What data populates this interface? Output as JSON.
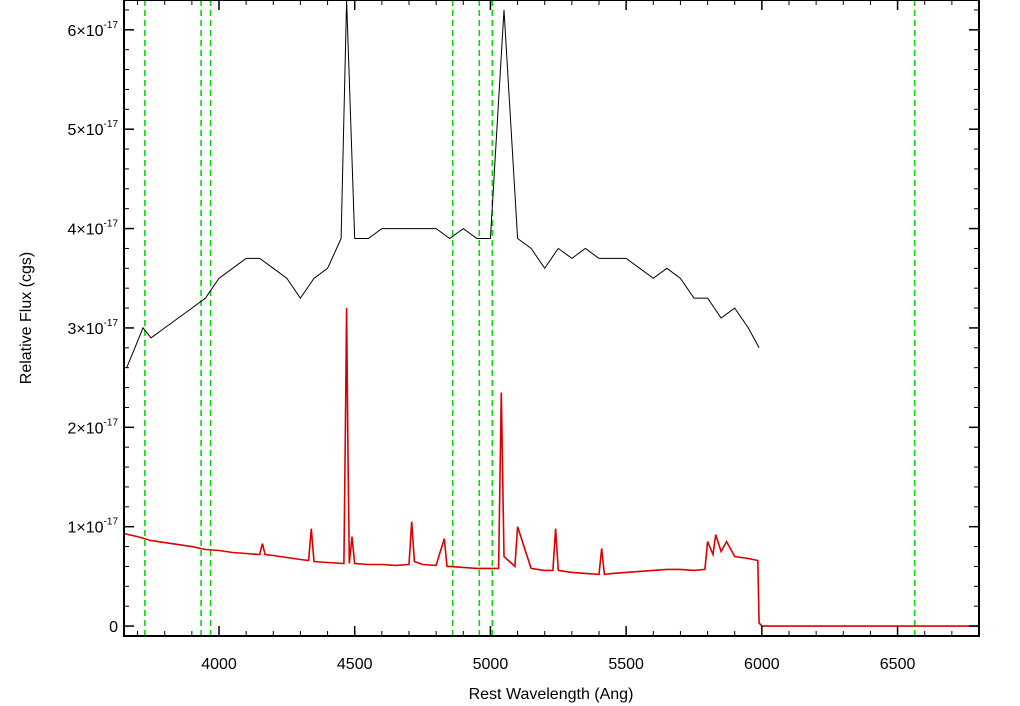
{
  "chart_data": {
    "type": "line",
    "xlabel": "Rest Wavelength (Ang)",
    "ylabel": "Relative Flux (cgs)",
    "xlim": [
      3650,
      6800
    ],
    "ylim": [
      -1e-18,
      6.3e-17
    ],
    "x_ticks": [
      {
        "value": 4000,
        "label": "4000"
      },
      {
        "value": 4500,
        "label": "4500"
      },
      {
        "value": 5000,
        "label": "5000"
      },
      {
        "value": 5500,
        "label": "5500"
      },
      {
        "value": 6000,
        "label": "6000"
      },
      {
        "value": 6500,
        "label": "6500"
      }
    ],
    "y_ticks": [
      {
        "value": 0,
        "mant": "0",
        "exp": ""
      },
      {
        "value": 1e-17,
        "mant": "1×10",
        "exp": "-17"
      },
      {
        "value": 2e-17,
        "mant": "2×10",
        "exp": "-17"
      },
      {
        "value": 3e-17,
        "mant": "3×10",
        "exp": "-17"
      },
      {
        "value": 4e-17,
        "mant": "4×10",
        "exp": "-17"
      },
      {
        "value": 5e-17,
        "mant": "5×10",
        "exp": "-17"
      },
      {
        "value": 6e-17,
        "mant": "6×10",
        "exp": "-17"
      }
    ],
    "grid": false,
    "legend": "none",
    "colors": {
      "data": "#000000",
      "model": "#dd0000",
      "lines": "#00dd00"
    },
    "vertical_lines": [
      3727,
      3934,
      3969,
      4861,
      4959,
      5007,
      6563
    ],
    "series": [
      {
        "color": "#000000",
        "x": [
          3660,
          3690,
          3720,
          3750,
          3800,
          3850,
          3900,
          3950,
          4000,
          4050,
          4100,
          4150,
          4200,
          4250,
          4300,
          4350,
          4400,
          4450,
          4470,
          4500,
          4550,
          4600,
          4650,
          4700,
          4750,
          4800,
          4850,
          4900,
          4950,
          5000,
          5050,
          5100,
          5150,
          5200,
          5250,
          5300,
          5350,
          5400,
          5450,
          5500,
          5550,
          5600,
          5650,
          5700,
          5750,
          5800,
          5850,
          5900,
          5950,
          5990
        ],
        "y": [
          2.6e-17,
          2.8e-17,
          3e-17,
          2.9e-17,
          3e-17,
          3.1e-17,
          3.2e-17,
          3.3e-17,
          3.5e-17,
          3.6e-17,
          3.7e-17,
          3.7e-17,
          3.6e-17,
          3.5e-17,
          3.3e-17,
          3.5e-17,
          3.6e-17,
          3.9e-17,
          6.3e-17,
          3.9e-17,
          3.9e-17,
          4e-17,
          4e-17,
          4e-17,
          4e-17,
          4e-17,
          3.9e-17,
          4e-17,
          3.9e-17,
          3.9e-17,
          6.2e-17,
          3.9e-17,
          3.8e-17,
          3.6e-17,
          3.8e-17,
          3.7e-17,
          3.8e-17,
          3.7e-17,
          3.7e-17,
          3.7e-17,
          3.6e-17,
          3.5e-17,
          3.6e-17,
          3.5e-17,
          3.3e-17,
          3.3e-17,
          3.1e-17,
          3.2e-17,
          3e-17,
          2.8e-17
        ]
      },
      {
        "color": "#dd0000",
        "x": [
          3650,
          3700,
          3750,
          3800,
          3850,
          3900,
          3950,
          4000,
          4050,
          4100,
          4150,
          4160,
          4170,
          4200,
          4250,
          4300,
          4330,
          4340,
          4350,
          4400,
          4460,
          4465,
          4470,
          4475,
          4480,
          4490,
          4500,
          4550,
          4600,
          4650,
          4700,
          4710,
          4720,
          4750,
          4800,
          4830,
          4840,
          4850,
          4900,
          4950,
          5000,
          5030,
          5040,
          5050,
          5090,
          5100,
          5150,
          5200,
          5230,
          5240,
          5250,
          5300,
          5350,
          5400,
          5410,
          5420,
          5450,
          5500,
          5550,
          5600,
          5650,
          5700,
          5750,
          5790,
          5800,
          5820,
          5830,
          5850,
          5870,
          5900,
          5950,
          5985,
          5990,
          6000,
          6100,
          6200,
          6400,
          6600,
          6800
        ],
        "y": [
          9.3e-18,
          9e-18,
          8.6e-18,
          8.4e-18,
          8.2e-18,
          8e-18,
          7.7e-18,
          7.6e-18,
          7.4e-18,
          7.3e-18,
          7.2e-18,
          8.3e-18,
          7.2e-18,
          7.1e-18,
          6.9e-18,
          6.7e-18,
          6.6e-18,
          9.8e-18,
          6.5e-18,
          6.4e-18,
          6.3e-18,
          1.8e-17,
          3.2e-17,
          1.8e-17,
          6.3e-18,
          9e-18,
          6.3e-18,
          6.2e-18,
          6.2e-18,
          6.1e-18,
          6.2e-18,
          1.05e-17,
          6.5e-18,
          6.2e-18,
          6.1e-18,
          8.8e-18,
          6e-18,
          6e-18,
          5.9e-18,
          5.8e-18,
          5.8e-18,
          5.8e-18,
          2.35e-17,
          7e-18,
          6e-18,
          1e-17,
          5.8e-18,
          5.6e-18,
          5.6e-18,
          9.8e-18,
          5.6e-18,
          5.4e-18,
          5.3e-18,
          5.2e-18,
          7.8e-18,
          5.2e-18,
          5.3e-18,
          5.4e-18,
          5.5e-18,
          5.6e-18,
          5.7e-18,
          5.7e-18,
          5.6e-18,
          5.7e-18,
          8.5e-18,
          7.2e-18,
          9.2e-18,
          7.5e-18,
          8.5e-18,
          7e-18,
          6.8e-18,
          6.6e-18,
          3e-19,
          0.0,
          0.0,
          0.0,
          0.0,
          0.0,
          0.0
        ]
      }
    ]
  }
}
